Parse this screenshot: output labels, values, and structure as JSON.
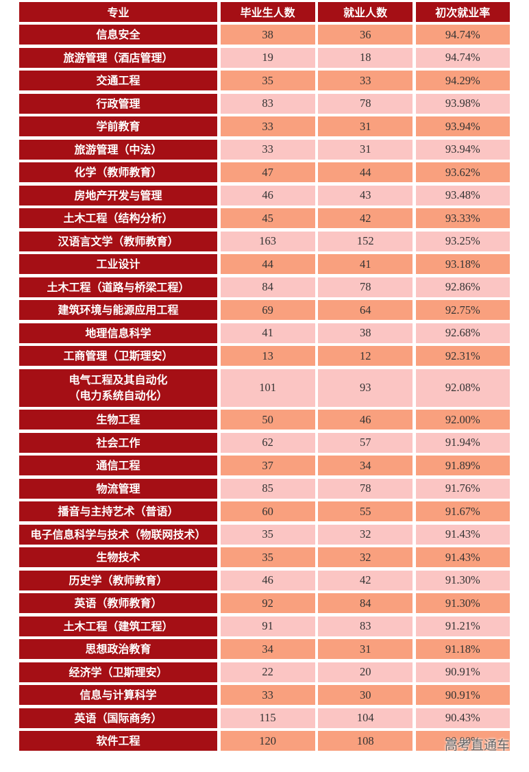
{
  "table": {
    "headers": [
      "专业",
      "毕业生人数",
      "就业人数",
      "初次就业率"
    ],
    "rows": [
      {
        "major": "信息安全",
        "graduates": "38",
        "employed": "36",
        "rate": "94.74%"
      },
      {
        "major": "旅游管理（酒店管理）",
        "graduates": "19",
        "employed": "18",
        "rate": "94.74%"
      },
      {
        "major": "交通工程",
        "graduates": "35",
        "employed": "33",
        "rate": "94.29%"
      },
      {
        "major": "行政管理",
        "graduates": "83",
        "employed": "78",
        "rate": "93.98%"
      },
      {
        "major": "学前教育",
        "graduates": "33",
        "employed": "31",
        "rate": "93.94%"
      },
      {
        "major": "旅游管理（中法）",
        "graduates": "33",
        "employed": "31",
        "rate": "93.94%"
      },
      {
        "major": "化学（教师教育）",
        "graduates": "47",
        "employed": "44",
        "rate": "93.62%"
      },
      {
        "major": "房地产开发与管理",
        "graduates": "46",
        "employed": "43",
        "rate": "93.48%"
      },
      {
        "major": "土木工程（结构分析）",
        "graduates": "45",
        "employed": "42",
        "rate": "93.33%"
      },
      {
        "major": "汉语言文学（教师教育）",
        "graduates": "163",
        "employed": "152",
        "rate": "93.25%"
      },
      {
        "major": "工业设计",
        "graduates": "44",
        "employed": "41",
        "rate": "93.18%"
      },
      {
        "major": "土木工程（道路与桥梁工程）",
        "graduates": "84",
        "employed": "78",
        "rate": "92.86%"
      },
      {
        "major": "建筑环境与能源应用工程",
        "graduates": "69",
        "employed": "64",
        "rate": "92.75%"
      },
      {
        "major": "地理信息科学",
        "graduates": "41",
        "employed": "38",
        "rate": "92.68%"
      },
      {
        "major": "工商管理（卫斯理安）",
        "graduates": "13",
        "employed": "12",
        "rate": "92.31%"
      },
      {
        "major": "电气工程及其自动化\n（电力系统自动化）",
        "graduates": "101",
        "employed": "93",
        "rate": "92.08%"
      },
      {
        "major": "生物工程",
        "graduates": "50",
        "employed": "46",
        "rate": "92.00%"
      },
      {
        "major": "社会工作",
        "graduates": "62",
        "employed": "57",
        "rate": "91.94%"
      },
      {
        "major": "通信工程",
        "graduates": "37",
        "employed": "34",
        "rate": "91.89%"
      },
      {
        "major": "物流管理",
        "graduates": "85",
        "employed": "78",
        "rate": "91.76%"
      },
      {
        "major": "播音与主持艺术（普语）",
        "graduates": "60",
        "employed": "55",
        "rate": "91.67%"
      },
      {
        "major": "电子信息科学与技术（物联网技术）",
        "graduates": "35",
        "employed": "32",
        "rate": "91.43%"
      },
      {
        "major": "生物技术",
        "graduates": "35",
        "employed": "32",
        "rate": "91.43%"
      },
      {
        "major": "历史学（教师教育）",
        "graduates": "46",
        "employed": "42",
        "rate": "91.30%"
      },
      {
        "major": "英语（教师教育）",
        "graduates": "92",
        "employed": "84",
        "rate": "91.30%"
      },
      {
        "major": "土木工程（建筑工程）",
        "graduates": "91",
        "employed": "83",
        "rate": "91.21%"
      },
      {
        "major": "思想政治教育",
        "graduates": "34",
        "employed": "31",
        "rate": "91.18%"
      },
      {
        "major": "经济学（卫斯理安）",
        "graduates": "22",
        "employed": "20",
        "rate": "90.91%"
      },
      {
        "major": "信息与计算科学",
        "graduates": "33",
        "employed": "30",
        "rate": "90.91%"
      },
      {
        "major": "英语（国际商务）",
        "graduates": "115",
        "employed": "104",
        "rate": "90.43%"
      },
      {
        "major": "软件工程",
        "graduates": "120",
        "employed": "108",
        "rate": "90.00%"
      }
    ]
  },
  "watermark": "高考直通车",
  "colors": {
    "header_and_name_bg": "#a50f15",
    "odd_row_bg": "#f9a07e",
    "even_row_bg": "#fbc5c3"
  }
}
